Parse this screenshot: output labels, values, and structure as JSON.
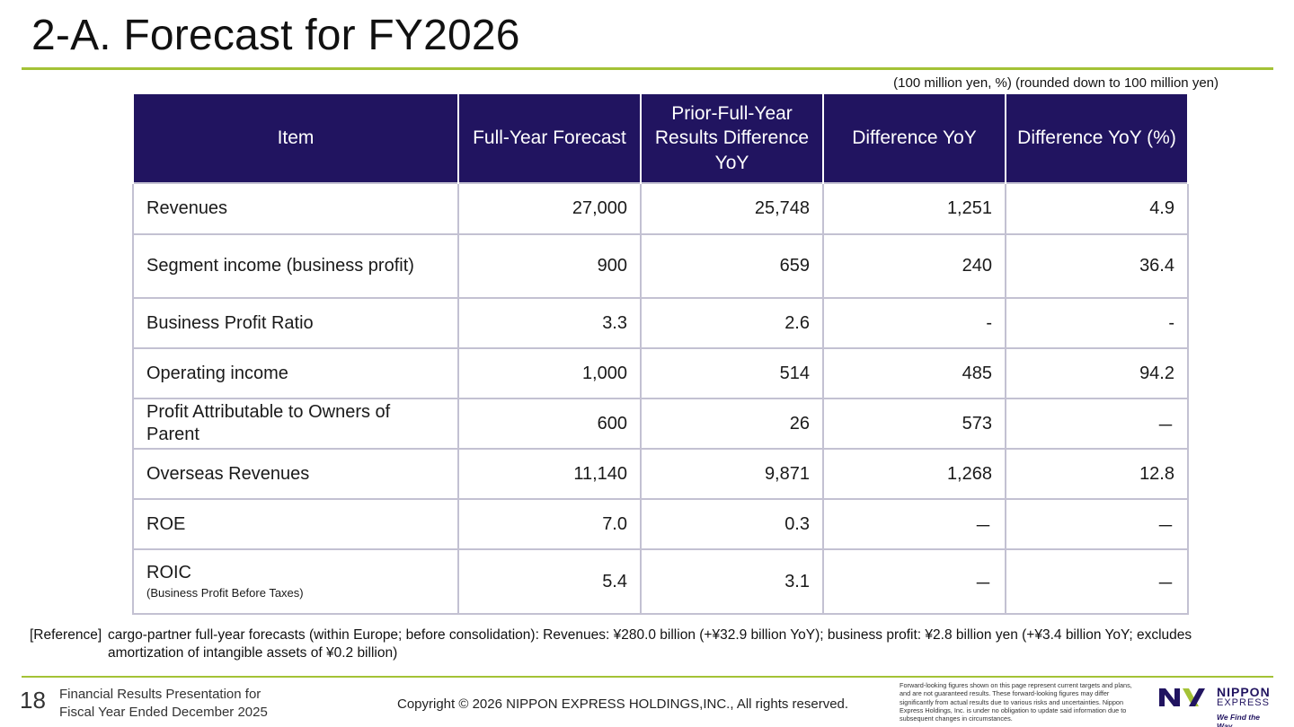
{
  "header": {
    "title": "2-A. Forecast for FY2026",
    "unit_note": "(100 million yen, %) (rounded down to 100 million yen)"
  },
  "table": {
    "columns": [
      "Item",
      "Full-Year Forecast",
      "Prior-Full-Year Results Difference YoY",
      "Difference YoY",
      "Difference YoY (%)"
    ],
    "rows": [
      {
        "label": "Revenues",
        "sub": "",
        "values": [
          "27,000",
          "25,748",
          "1,251",
          "4.9"
        ]
      },
      {
        "label": "Segment income (business profit)",
        "sub": "",
        "values": [
          "900",
          "659",
          "240",
          "36.4"
        ]
      },
      {
        "label": "Business Profit Ratio",
        "sub": "",
        "values": [
          "3.3",
          "2.6",
          "-",
          "-"
        ]
      },
      {
        "label": "Operating income",
        "sub": "",
        "values": [
          "1,000",
          "514",
          "485",
          "94.2"
        ]
      },
      {
        "label": "Profit Attributable to Owners of Parent",
        "sub": "",
        "values": [
          "600",
          "26",
          "573",
          "－"
        ]
      },
      {
        "label": "Overseas Revenues",
        "sub": "",
        "values": [
          "11,140",
          "9,871",
          "1,268",
          "12.8"
        ]
      },
      {
        "label": "ROE",
        "sub": "",
        "values": [
          "7.0",
          "0.3",
          "－",
          "－"
        ]
      },
      {
        "label": "ROIC",
        "sub": "(Business Profit Before Taxes)",
        "values": [
          "5.4",
          "3.1",
          "－",
          "－"
        ]
      }
    ]
  },
  "reference": {
    "tag": "[Reference]",
    "text": "cargo-partner full-year forecasts (within Europe; before consolidation): Revenues: ¥280.0 billion (+¥32.9 billion YoY); business profit: ¥2.8 billion yen (+¥3.4 billion YoY; excludes amortization of intangible assets of ¥0.2 billion)"
  },
  "footer": {
    "page_number": "18",
    "presentation_line1": "Financial Results Presentation for",
    "presentation_line2": "Fiscal Year Ended December 2025",
    "copyright": "Copyright © 2026 NIPPON EXPRESS HOLDINGS,INC., All rights reserved.",
    "disclaimer": "Forward-looking figures shown on this page represent current targets and plans, and are not guaranteed results. These forward-looking figures may differ significantly from actual results due to various risks and uncertainties. Nippon Express Holdings, Inc. is under no obligation to update said information due to subsequent changes in circumstances."
  },
  "logo": {
    "mark": "NX",
    "word1": "NIPPON",
    "word2": "EXPRESS",
    "tagline": "We Find the Way"
  },
  "colors": {
    "header_bg": "#211460",
    "accent_green": "#a4c236",
    "grid": "#c3c1d2"
  }
}
